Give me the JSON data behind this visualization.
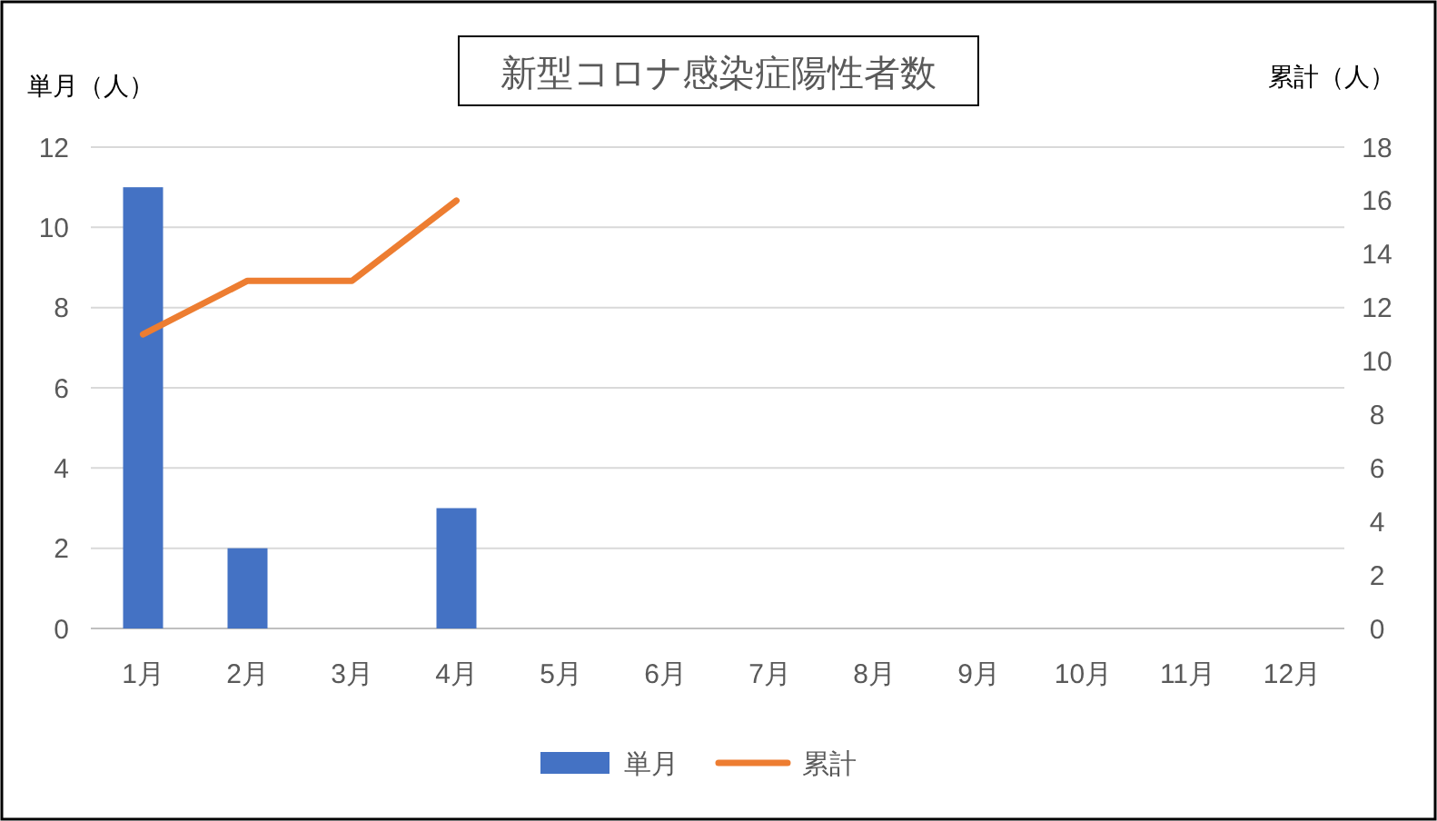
{
  "chart_data": {
    "type": "bar",
    "title": "新型コロナ感染症陽性者数",
    "ylabel": "単月（人）",
    "y2label": "累計（人）",
    "categories": [
      "1月",
      "2月",
      "3月",
      "4月",
      "5月",
      "6月",
      "7月",
      "8月",
      "9月",
      "10月",
      "11月",
      "12月"
    ],
    "series": [
      {
        "name": "単月",
        "color": "#4472c4",
        "values": [
          11,
          2,
          0,
          3,
          null,
          null,
          null,
          null,
          null,
          null,
          null,
          null
        ]
      },
      {
        "name": "累計",
        "type": "line",
        "axis": "y2",
        "color": "#ed7d31",
        "values": [
          11,
          13,
          13,
          16,
          null,
          null,
          null,
          null,
          null,
          null,
          null,
          null
        ]
      }
    ],
    "ylim": [
      0,
      12
    ],
    "yticks": [
      0,
      2,
      4,
      6,
      8,
      10,
      12
    ],
    "y2lim": [
      0,
      18
    ],
    "y2ticks": [
      0,
      2,
      4,
      6,
      8,
      10,
      12,
      14,
      16,
      18
    ],
    "grid": "y",
    "legend": "bottom",
    "marker": "none",
    "line_style": "solid"
  }
}
